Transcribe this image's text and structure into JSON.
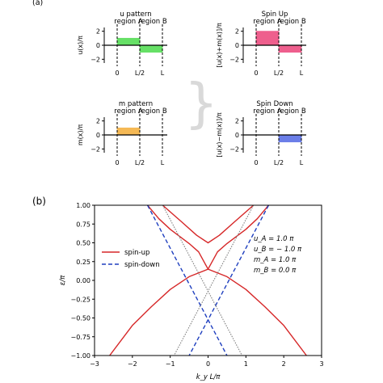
{
  "figure": {
    "label_a": "(a)",
    "label_b": "(b)",
    "brace_symbol": "}"
  },
  "panels_a": [
    {
      "title": "u pattern",
      "ylabel": "u(x)/π",
      "region_a": "region A",
      "region_b": "region B",
      "x_ticks": [
        "0",
        "L/2",
        "L"
      ],
      "y_ticks": [
        "2",
        "0",
        "−2"
      ],
      "values": [
        1.0,
        -1.0
      ],
      "colors": [
        "#66e066",
        "#66e066"
      ]
    },
    {
      "title": "Spin Up",
      "ylabel": "[u(x)+m(x)]/π",
      "region_a": "region A",
      "region_b": "region B",
      "x_ticks": [
        "0",
        "L/2",
        "L"
      ],
      "y_ticks": [
        "2",
        "0",
        "−2"
      ],
      "values": [
        2.0,
        -1.0
      ],
      "colors": [
        "#ee5f8d",
        "#ee5f8d"
      ]
    },
    {
      "title": "m pattern",
      "ylabel": "m(x)/π",
      "region_a": "region A",
      "region_b": "region B",
      "x_ticks": [
        "0",
        "L/2",
        "L"
      ],
      "y_ticks": [
        "2",
        "0",
        "−2"
      ],
      "values": [
        1.0,
        0.0
      ],
      "colors": [
        "#f5b955",
        "#f5b955"
      ]
    },
    {
      "title": "Spin Down",
      "ylabel": "[u(x)−m(x)]/π",
      "region_a": "region A",
      "region_b": "region B",
      "x_ticks": [
        "0",
        "L/2",
        "L"
      ],
      "y_ticks": [
        "2",
        "0",
        "−2"
      ],
      "values": [
        0.0,
        -1.0
      ],
      "colors": [
        "#6b7ee8",
        "#6b7ee8"
      ]
    }
  ],
  "chart_data": {
    "type": "line",
    "xlabel": "k_y L/π",
    "ylabel": "ε/π",
    "xlim": [
      -3,
      3
    ],
    "ylim": [
      -1.0,
      1.0
    ],
    "x_ticks": [
      "−3",
      "−2",
      "−1",
      "0",
      "1",
      "2",
      "3"
    ],
    "y_ticks": [
      "1.00",
      "0.75",
      "0.50",
      "0.25",
      "0.00",
      "−0.25",
      "−0.50",
      "−0.75",
      "−1.00"
    ],
    "legend": [
      "spin-up",
      "spin-down"
    ],
    "legend_position": "left",
    "params": [
      "u_A = 1.0 π",
      "u_B = − 1.0 π",
      "m_A = 1.0 π",
      "m_B = 0.0 π"
    ],
    "series": [
      {
        "name": "spin-up",
        "color": "#d62728",
        "dash": "solid",
        "points": [
          [
            -2.6,
            -1.0
          ],
          [
            -2.0,
            -0.6
          ],
          [
            -1.5,
            -0.35
          ],
          [
            -1.0,
            -0.12
          ],
          [
            -0.5,
            0.05
          ],
          [
            0.0,
            0.15
          ],
          [
            0.25,
            0.38
          ],
          [
            0.5,
            0.49
          ],
          [
            1.0,
            0.68
          ],
          [
            1.3,
            0.82
          ],
          [
            1.6,
            1.0
          ]
        ]
      },
      {
        "name": "spin-up",
        "color": "#d62728",
        "dash": "solid",
        "points": [
          [
            -1.6,
            1.0
          ],
          [
            -1.3,
            0.82
          ],
          [
            -1.0,
            0.68
          ],
          [
            -0.5,
            0.49
          ],
          [
            -0.25,
            0.38
          ],
          [
            0.0,
            0.15
          ],
          [
            0.5,
            0.05
          ],
          [
            1.0,
            -0.12
          ],
          [
            1.5,
            -0.35
          ],
          [
            2.0,
            -0.6
          ],
          [
            2.6,
            -1.0
          ]
        ]
      },
      {
        "name": "spin-up",
        "color": "#d62728",
        "dash": "solid",
        "points": [
          [
            -1.2,
            1.0
          ],
          [
            -0.7,
            0.78
          ],
          [
            -0.3,
            0.6
          ],
          [
            0.0,
            0.5
          ],
          [
            0.3,
            0.6
          ],
          [
            0.7,
            0.78
          ],
          [
            1.2,
            1.0
          ]
        ]
      },
      {
        "name": "spin-down",
        "color": "#1f3fbf",
        "dash": "dashed",
        "points": [
          [
            -1.6,
            1.0
          ],
          [
            0.5,
            -1.0
          ]
        ]
      },
      {
        "name": "spin-down",
        "color": "#1f3fbf",
        "dash": "dashed",
        "points": [
          [
            1.6,
            1.0
          ],
          [
            -0.5,
            -1.0
          ]
        ]
      },
      {
        "name": "",
        "color": "#7f7f7f",
        "dash": "dotted",
        "points": [
          [
            -1.2,
            1.0
          ],
          [
            0.9,
            -1.0
          ]
        ]
      },
      {
        "name": "",
        "color": "#7f7f7f",
        "dash": "dotted",
        "points": [
          [
            1.2,
            1.0
          ],
          [
            -0.9,
            -1.0
          ]
        ]
      }
    ]
  }
}
